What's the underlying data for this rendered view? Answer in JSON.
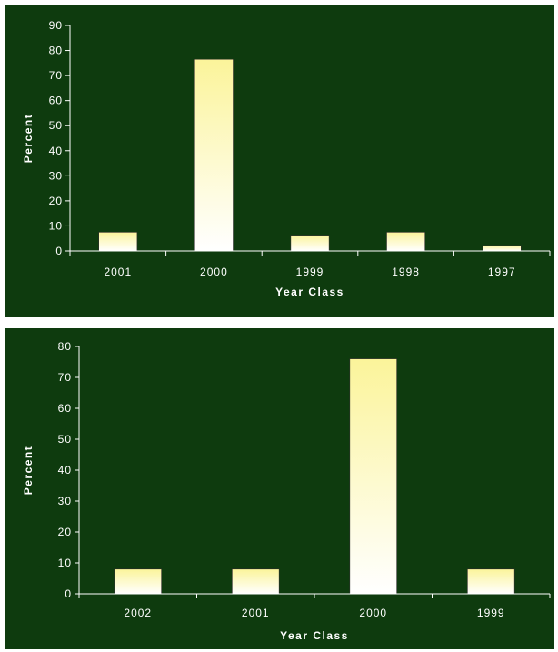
{
  "chart_data": [
    {
      "type": "bar",
      "categories": [
        "2001",
        "2000",
        "1999",
        "1998",
        "1997"
      ],
      "values": [
        7.5,
        76.5,
        6.3,
        7.5,
        2.2
      ],
      "xlabel": "Year Class",
      "ylabel": "Percent",
      "ylim": [
        0,
        90
      ],
      "yticks": [
        0,
        10,
        20,
        30,
        40,
        50,
        60,
        70,
        80,
        90
      ],
      "grid": false,
      "legend": "none",
      "colors": {
        "background": "#0e3b0e",
        "bar_top": "#fbf49a",
        "bar_bottom": "#ffffff",
        "text": "#ffffff"
      }
    },
    {
      "type": "bar",
      "categories": [
        "2002",
        "2001",
        "2000",
        "1999"
      ],
      "values": [
        8,
        8,
        76,
        8
      ],
      "xlabel": "Year Class",
      "ylabel": "Percent",
      "ylim": [
        0,
        80
      ],
      "yticks": [
        0,
        10,
        20,
        30,
        40,
        50,
        60,
        70,
        80
      ],
      "grid": false,
      "legend": "none",
      "colors": {
        "background": "#0e3b0e",
        "bar_top": "#fbf49a",
        "bar_bottom": "#ffffff",
        "text": "#ffffff"
      }
    }
  ]
}
